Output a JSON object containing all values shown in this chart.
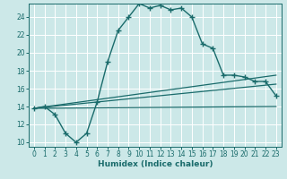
{
  "xlabel": "Humidex (Indice chaleur)",
  "bg_color": "#cce8e8",
  "grid_color": "#ffffff",
  "line_color": "#1a6b6b",
  "xlim": [
    -0.5,
    23.5
  ],
  "ylim": [
    9.5,
    25.5
  ],
  "xticks": [
    0,
    1,
    2,
    3,
    4,
    5,
    6,
    7,
    8,
    9,
    10,
    11,
    12,
    13,
    14,
    15,
    16,
    17,
    18,
    19,
    20,
    21,
    22,
    23
  ],
  "yticks": [
    10,
    12,
    14,
    16,
    18,
    20,
    22,
    24
  ],
  "curve_x": [
    0,
    1,
    2,
    3,
    4,
    5,
    6,
    7,
    8,
    9,
    10,
    11,
    12,
    13,
    14,
    15,
    16,
    17,
    18,
    19,
    20,
    21,
    22,
    23
  ],
  "curve_y": [
    13.8,
    14.0,
    13.1,
    11.0,
    10.0,
    11.0,
    14.5,
    19.0,
    22.5,
    24.0,
    25.5,
    25.0,
    25.3,
    24.8,
    25.0,
    24.0,
    21.0,
    20.5,
    17.5,
    17.5,
    17.3,
    16.8,
    16.8,
    15.2
  ],
  "line1_x": [
    0,
    23
  ],
  "line1_y": [
    13.8,
    17.5
  ],
  "line2_x": [
    0,
    23
  ],
  "line2_y": [
    13.8,
    16.5
  ],
  "line3_x": [
    0,
    23
  ],
  "line3_y": [
    13.8,
    14.0
  ]
}
